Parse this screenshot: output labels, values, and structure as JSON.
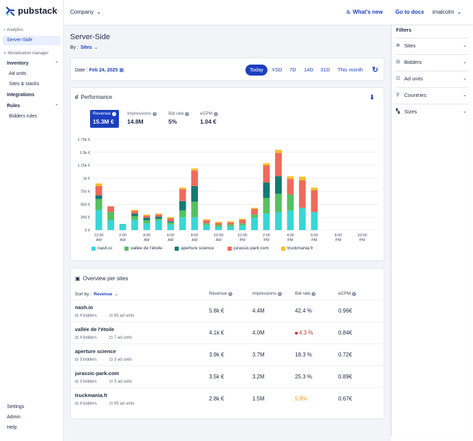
{
  "app": {
    "name": "pubstack"
  },
  "sidebar": {
    "analytics_label": "Analytics",
    "server_side": "Server-Side",
    "monetisation_label": "Monetisation manager",
    "inventory": "Inventory",
    "ad_units": "Ad units",
    "sites_stacks": "Sites & stacks",
    "integrations": "Integrations",
    "rules": "Rules",
    "bidders_rules": "Bidders rules",
    "settings": "Settings",
    "admin": "Admin",
    "help": "Help"
  },
  "topbar": {
    "company": "Company",
    "whats_new": "What's new",
    "go_to_docs": "Go to docs",
    "user": "imalcolm"
  },
  "page": {
    "title": "Server-Side",
    "by_label": "By :",
    "by_value": "Sites"
  },
  "date": {
    "label": "Date :",
    "value": "Feb 24, 2025",
    "ranges": [
      "Today",
      "YSD",
      "7D",
      "14D",
      "31D",
      "This month"
    ]
  },
  "performance": {
    "title": "Performance",
    "metrics": [
      {
        "label": "Revenue",
        "value": "15.3M €"
      },
      {
        "label": "Impressions",
        "value": "14.8M"
      },
      {
        "label": "Bid rate",
        "value": "5%"
      },
      {
        "label": "eCPM",
        "value": "1.04 €"
      }
    ]
  },
  "chart_data": {
    "type": "bar",
    "stacked": true,
    "categories": [
      "12:00 AM",
      "1:00 AM",
      "2:00 AM",
      "3:00 AM",
      "4:00 AM",
      "5:00 AM",
      "6:00 AM",
      "7:00 AM",
      "8:00 AM",
      "9:00 AM",
      "10:00 AM",
      "11:00 AM",
      "12:00 PM",
      "1:00 PM",
      "2:00 PM",
      "3:00 PM",
      "4:00 PM",
      "5:00 PM",
      "6:00 PM",
      "7:00 PM",
      "8:00 PM",
      "9:00 PM",
      "10:00 PM",
      "11:00 PM"
    ],
    "tick_labels": [
      [
        "12:00",
        "AM"
      ],
      [
        "2:00",
        "AM"
      ],
      [
        "4:00",
        "AM"
      ],
      [
        "6:00",
        "AM"
      ],
      [
        "8:00",
        "AM"
      ],
      [
        "10:00",
        "AM"
      ],
      [
        "12:00",
        "PM"
      ],
      [
        "2:00",
        "PM"
      ],
      [
        "4:00",
        "PM"
      ],
      [
        "6:00",
        "PM"
      ],
      [
        "8:00",
        "PM"
      ],
      [
        "10:00",
        "PM"
      ]
    ],
    "y_ticks": [
      "0 €",
      "250 €",
      "500 €",
      "750 €",
      "1k €",
      "1.25k €",
      "1.5k €",
      "1.75k €"
    ],
    "ylim": [
      0,
      1750
    ],
    "series": [
      {
        "name": "nash.io",
        "color": "#3ad6d6",
        "values": [
          390,
          190,
          120,
          200,
          130,
          190,
          110,
          250,
          250,
          100,
          60,
          70,
          90,
          240,
          320,
          350,
          380,
          430,
          350,
          0,
          0,
          0,
          0,
          0
        ]
      },
      {
        "name": "vallée de l'étoile",
        "color": "#56c060",
        "values": [
          210,
          160,
          0,
          70,
          60,
          30,
          40,
          130,
          300,
          30,
          40,
          40,
          40,
          60,
          300,
          350,
          310,
          0,
          0,
          0,
          0,
          0,
          0,
          0
        ]
      },
      {
        "name": "aperture science",
        "color": "#137a72",
        "values": [
          70,
          0,
          0,
          50,
          50,
          40,
          20,
          180,
          300,
          0,
          0,
          0,
          0,
          0,
          300,
          340,
          0,
          0,
          0,
          0,
          0,
          0,
          0,
          0
        ]
      },
      {
        "name": "jurassic-park.com",
        "color": "#ef6a5d",
        "values": [
          180,
          110,
          0,
          50,
          40,
          40,
          60,
          230,
          300,
          60,
          40,
          40,
          70,
          110,
          330,
          450,
          300,
          530,
          420,
          0,
          0,
          0,
          0,
          0
        ]
      },
      {
        "name": "truckmania.fr",
        "color": "#f5c02a",
        "values": [
          50,
          0,
          0,
          20,
          20,
          20,
          20,
          30,
          40,
          20,
          20,
          20,
          20,
          20,
          40,
          60,
          50,
          70,
          50,
          0,
          0,
          0,
          0,
          0
        ]
      }
    ]
  },
  "overview": {
    "title": "Overview per sites",
    "sort_label": "Sort by :",
    "sort_value": "Revenue",
    "columns": [
      "Revenue",
      "Impressions",
      "Bid rate",
      "eCPM"
    ],
    "rows": [
      {
        "name": "nash.io",
        "bidders": "4 bidders",
        "adunits": "65 ad units",
        "revenue": "5.8k €",
        "impressions": "4.4M",
        "bidrate": "42.4 %",
        "ecpm": "0.96€"
      },
      {
        "name": "vallée de l'étoile",
        "bidders": "4 bidders",
        "adunits": "7 ad units",
        "revenue": "4.1k €",
        "impressions": "4.0M",
        "bidrate": "4.3 %",
        "ecpm": "0.84€"
      },
      {
        "name": "aperture science",
        "bidders": "3 bidders",
        "adunits": "3 ad units",
        "revenue": "3.9k €",
        "impressions": "3.7M",
        "bidrate": "18.3 %",
        "ecpm": "0.72€"
      },
      {
        "name": "jurassic-park.com",
        "bidders": "3 bidders",
        "adunits": "3 ad units",
        "revenue": "3.5k €",
        "impressions": "3.2M",
        "bidrate": "25.3 %",
        "ecpm": "0.89€"
      },
      {
        "name": "truckmania.fr",
        "bidders": "4 bidders",
        "adunits": "65 ad units",
        "revenue": "2.8k €",
        "impressions": "1.5M",
        "bidrate": "5.8%",
        "ecpm": "0.67€"
      }
    ]
  },
  "filters": {
    "title": "Filters",
    "items": [
      "Sites",
      "Bidders",
      "Ad units",
      "Countries",
      "Sizes"
    ]
  },
  "colors": {
    "accent": "#1c3fbf",
    "danger": "#d22b2b",
    "warning": "#e89a1c"
  }
}
